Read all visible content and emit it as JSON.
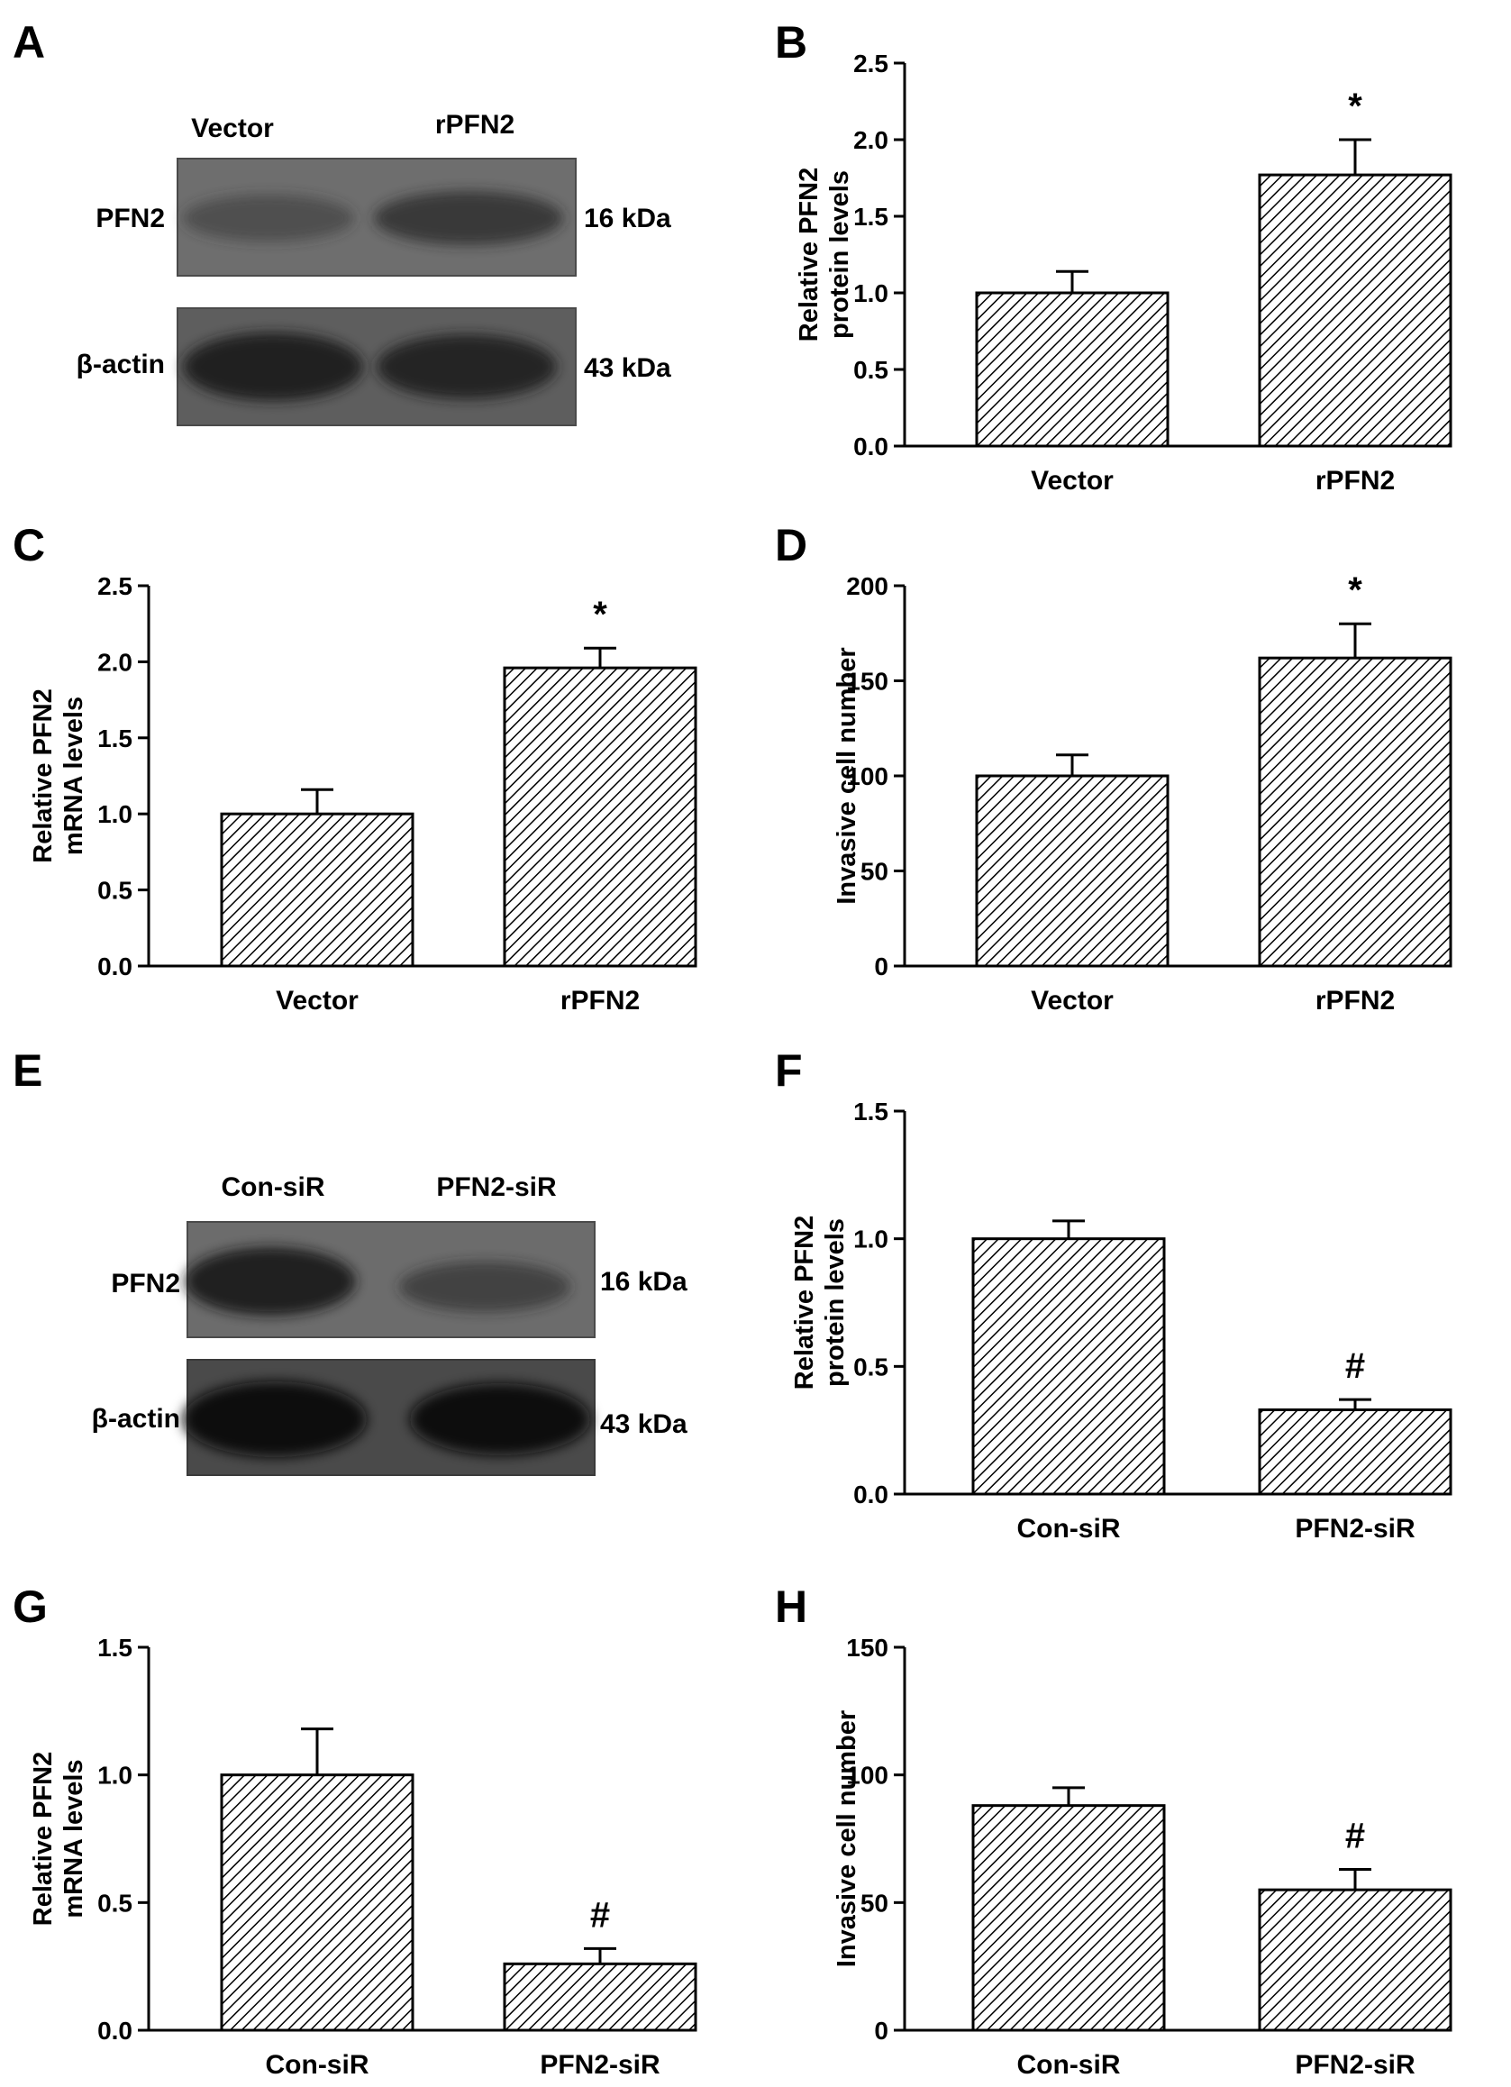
{
  "figure": {
    "panel_letters": [
      "A",
      "B",
      "C",
      "D",
      "E",
      "F",
      "G",
      "H"
    ]
  },
  "blots": [
    {
      "panel": "A",
      "lanes": [
        "Vector",
        "rPFN2"
      ],
      "rows": [
        {
          "name": "PFN2",
          "size": "16 kDa",
          "intensity": [
            0.55,
            0.75
          ]
        },
        {
          "name": "β-actin",
          "size": "43 kDa",
          "intensity": [
            0.95,
            0.9
          ]
        }
      ]
    },
    {
      "panel": "E",
      "lanes": [
        "Con-siR",
        "PFN2-siR"
      ],
      "rows": [
        {
          "name": "PFN2",
          "size": "16 kDa",
          "intensity": [
            0.9,
            0.6
          ]
        },
        {
          "name": "β-actin",
          "size": "43 kDa",
          "intensity": [
            1.0,
            1.0
          ]
        }
      ]
    }
  ],
  "chart_data": [
    {
      "panel": "B",
      "type": "bar",
      "categories": [
        "Vector",
        "rPFN2"
      ],
      "values": [
        1.0,
        1.77
      ],
      "errors": [
        0.14,
        0.23
      ],
      "ylabel_lines": [
        "Relative PFN2",
        "protein levels"
      ],
      "ylim": [
        0,
        2.5
      ],
      "yticks": [
        "0.0",
        "0.5",
        "1.0",
        "1.5",
        "2.0",
        "2.5"
      ],
      "annotations": [
        "",
        "*"
      ]
    },
    {
      "panel": "C",
      "type": "bar",
      "categories": [
        "Vector",
        "rPFN2"
      ],
      "values": [
        1.0,
        1.96
      ],
      "errors": [
        0.16,
        0.13
      ],
      "ylabel_lines": [
        "Relative PFN2",
        "mRNA levels"
      ],
      "ylim": [
        0,
        2.5
      ],
      "yticks": [
        "0.0",
        "0.5",
        "1.0",
        "1.5",
        "2.0",
        "2.5"
      ],
      "annotations": [
        "",
        "*"
      ]
    },
    {
      "panel": "D",
      "type": "bar",
      "categories": [
        "Vector",
        "rPFN2"
      ],
      "values": [
        100,
        162
      ],
      "errors": [
        11,
        18
      ],
      "ylabel_lines": [
        "Invasive cell number"
      ],
      "ylim": [
        0,
        200
      ],
      "yticks": [
        "0",
        "50",
        "100",
        "150",
        "200"
      ],
      "annotations": [
        "",
        "*"
      ]
    },
    {
      "panel": "F",
      "type": "bar",
      "categories": [
        "Con-siR",
        "PFN2-siR"
      ],
      "values": [
        1.0,
        0.33
      ],
      "errors": [
        0.07,
        0.04
      ],
      "ylabel_lines": [
        "Relative PFN2",
        "protein levels"
      ],
      "ylim": [
        0,
        1.5
      ],
      "yticks": [
        "0.0",
        "0.5",
        "1.0",
        "1.5"
      ],
      "annotations": [
        "",
        "#"
      ]
    },
    {
      "panel": "G",
      "type": "bar",
      "categories": [
        "Con-siR",
        "PFN2-siR"
      ],
      "values": [
        1.0,
        0.26
      ],
      "errors": [
        0.18,
        0.06
      ],
      "ylabel_lines": [
        "Relative PFN2",
        "mRNA levels"
      ],
      "ylim": [
        0,
        1.5
      ],
      "yticks": [
        "0.0",
        "0.5",
        "1.0",
        "1.5"
      ],
      "annotations": [
        "",
        "#"
      ]
    },
    {
      "panel": "H",
      "type": "bar",
      "categories": [
        "Con-siR",
        "PFN2-siR"
      ],
      "values": [
        88,
        55
      ],
      "errors": [
        7,
        8
      ],
      "ylabel_lines": [
        "Invasive cell number"
      ],
      "ylim": [
        0,
        150
      ],
      "yticks": [
        "0",
        "50",
        "100",
        "150"
      ],
      "annotations": [
        "",
        "#"
      ]
    }
  ]
}
